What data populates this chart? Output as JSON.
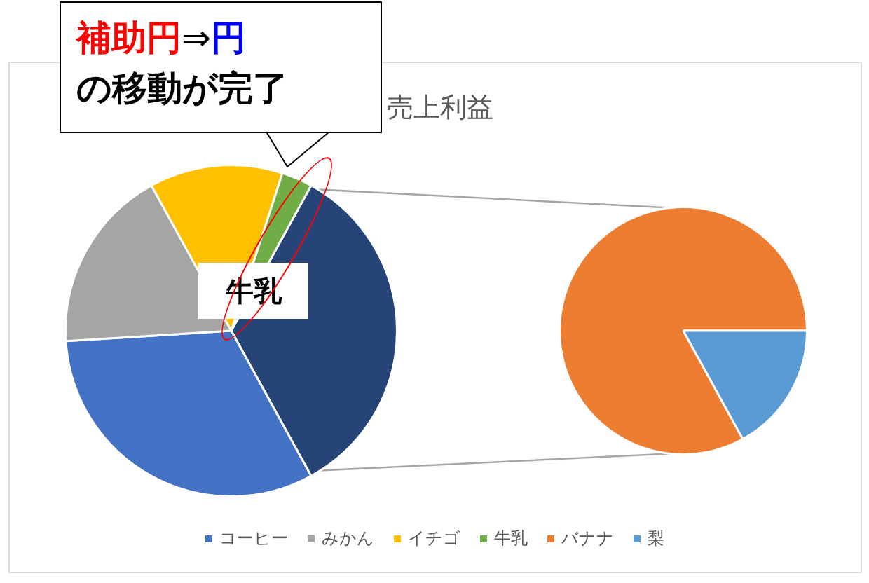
{
  "chart_data": [
    {
      "type": "pie",
      "title": "売上利益",
      "categories": [
        null,
        "コーヒー",
        "みかん",
        "イチゴ",
        "牛乳"
      ],
      "values": [
        34,
        32,
        18,
        13,
        3
      ],
      "colors": [
        "#264478",
        "#4472c4",
        "#a5a5a5",
        "#ffc000",
        "#70ad47"
      ],
      "legend": "bottom",
      "annotations": [
        "補助円",
        "⇒",
        "円",
        "の移動が完了",
        "牛乳"
      ]
    },
    {
      "type": "pie",
      "categories": [
        "バナナ",
        "梨"
      ],
      "values": [
        83,
        17
      ],
      "colors": [
        "#ed7d31",
        "#5b9bd5"
      ],
      "legend": "bottom"
    }
  ]
}
